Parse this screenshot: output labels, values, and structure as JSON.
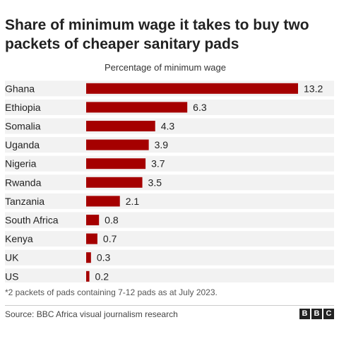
{
  "chart_data": {
    "type": "bar",
    "orientation": "horizontal",
    "title": "Share of minimum wage it takes to buy two packets of cheaper sanitary pads",
    "xlabel": "Percentage of minimum wage",
    "categories": [
      "Ghana",
      "Ethiopia",
      "Somalia",
      "Uganda",
      "Nigeria",
      "Rwanda",
      "Tanzania",
      "South Africa",
      "Kenya",
      "UK",
      "US"
    ],
    "values": [
      13.2,
      6.3,
      4.3,
      3.9,
      3.7,
      3.5,
      2.1,
      0.8,
      0.7,
      0.3,
      0.2
    ],
    "value_labels": [
      "13.2",
      "6.3",
      "4.3",
      "3.9",
      "3.7",
      "3.5",
      "2.1",
      "0.8",
      "0.7",
      "0.3",
      "0.2"
    ],
    "xlim": [
      0,
      13.2
    ],
    "grid": false,
    "legend": "none",
    "bar_color": "#a50000",
    "row_band_color": "#f2f2f2"
  },
  "footnote": "*2 packets of pads containing 7-12 pads as at July 2023.",
  "source": "Source: BBC Africa visual journalism research",
  "logo": {
    "letters": [
      "B",
      "B",
      "C"
    ]
  }
}
